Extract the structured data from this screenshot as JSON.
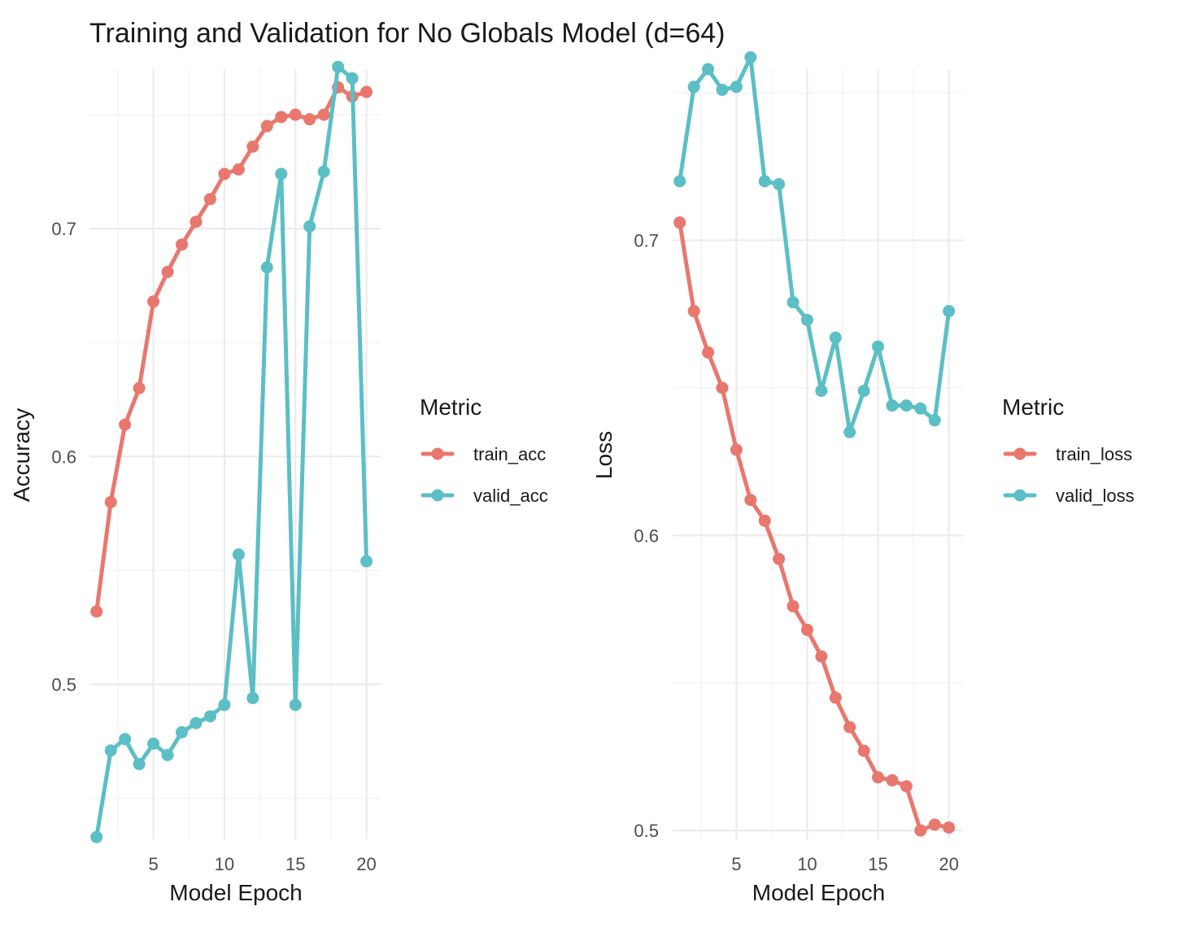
{
  "title": "Training and Validation for No Globals Model (d=64)",
  "chart_data": [
    {
      "type": "line",
      "title": "Training and Validation for No Globals Model (d=64)",
      "xlabel": "Model Epoch",
      "ylabel": "Accuracy",
      "x": [
        1,
        2,
        3,
        4,
        5,
        6,
        7,
        8,
        9,
        10,
        11,
        12,
        13,
        14,
        15,
        16,
        17,
        18,
        19,
        20
      ],
      "xlim": [
        0.5,
        21
      ],
      "ylim": [
        0.432,
        0.77
      ],
      "xticks": [
        5,
        10,
        15,
        20
      ],
      "xtick_labels": [
        "5",
        "10",
        "15",
        "20"
      ],
      "yticks": [
        0.5,
        0.6,
        0.7
      ],
      "ytick_labels": [
        "0.5",
        "0.6",
        "0.7"
      ],
      "grid": true,
      "legend_title": "Metric",
      "legend_position": "right",
      "series": [
        {
          "name": "train_acc",
          "color": "#E8776E",
          "values": [
            0.532,
            0.58,
            0.614,
            0.63,
            0.668,
            0.681,
            0.693,
            0.703,
            0.713,
            0.724,
            0.726,
            0.736,
            0.745,
            0.749,
            0.75,
            0.748,
            0.75,
            0.762,
            0.758,
            0.76
          ]
        },
        {
          "name": "valid_acc",
          "color": "#5BBFC5",
          "values": [
            0.433,
            0.471,
            0.476,
            0.465,
            0.474,
            0.469,
            0.479,
            0.483,
            0.486,
            0.491,
            0.557,
            0.494,
            0.683,
            0.724,
            0.491,
            0.701,
            0.725,
            0.771,
            0.766,
            0.554
          ]
        }
      ]
    },
    {
      "type": "line",
      "title": "",
      "xlabel": "Model Epoch",
      "ylabel": "Loss",
      "x": [
        1,
        2,
        3,
        4,
        5,
        6,
        7,
        8,
        9,
        10,
        11,
        12,
        13,
        14,
        15,
        16,
        17,
        18,
        19,
        20
      ],
      "xlim": [
        0.5,
        21
      ],
      "ylim": [
        0.497,
        0.758
      ],
      "xticks": [
        5,
        10,
        15,
        20
      ],
      "xtick_labels": [
        "5",
        "10",
        "15",
        "20"
      ],
      "yticks": [
        0.5,
        0.6,
        0.7
      ],
      "ytick_labels": [
        "0.5",
        "0.6",
        "0.7"
      ],
      "grid": true,
      "legend_title": "Metric",
      "legend_position": "right",
      "series": [
        {
          "name": "train_loss",
          "color": "#E8776E",
          "values": [
            0.706,
            0.676,
            0.662,
            0.65,
            0.629,
            0.612,
            0.605,
            0.592,
            0.576,
            0.568,
            0.559,
            0.545,
            0.535,
            0.527,
            0.518,
            0.517,
            0.515,
            0.5,
            0.502,
            0.501
          ]
        },
        {
          "name": "valid_loss",
          "color": "#5BBFC5",
          "values": [
            0.72,
            0.752,
            0.758,
            0.751,
            0.752,
            0.762,
            0.72,
            0.719,
            0.679,
            0.673,
            0.649,
            0.667,
            0.635,
            0.649,
            0.664,
            0.644,
            0.644,
            0.643,
            0.639,
            0.676
          ]
        }
      ]
    }
  ]
}
